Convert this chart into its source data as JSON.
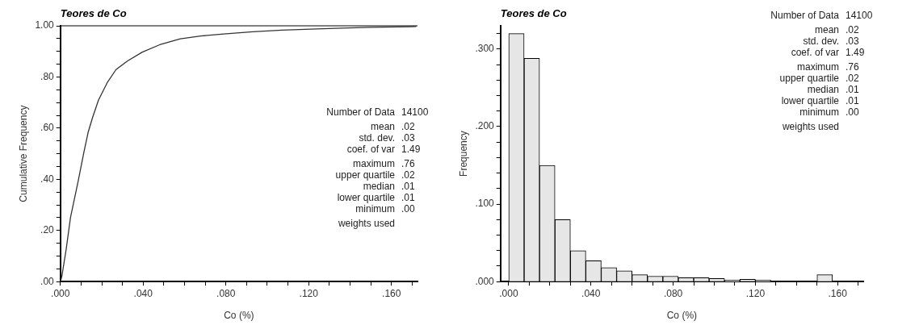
{
  "chart_data": [
    {
      "type": "line",
      "title": "Teores de Co",
      "xlabel": "Co (%)",
      "ylabel": "Cumulative Frequency",
      "color": "#333333",
      "x": [
        0,
        0.0007,
        0.0028,
        0.0049,
        0.0085,
        0.0113,
        0.0134,
        0.0155,
        0.0184,
        0.0226,
        0.0269,
        0.0325,
        0.0396,
        0.048,
        0.058,
        0.0678,
        0.079,
        0.093,
        0.107,
        0.121,
        0.136,
        0.15,
        0.172
      ],
      "values": [
        0,
        0.02,
        0.126,
        0.251,
        0.389,
        0.503,
        0.583,
        0.64,
        0.709,
        0.777,
        0.829,
        0.863,
        0.897,
        0.926,
        0.949,
        0.96,
        0.968,
        0.977,
        0.983,
        0.987,
        0.991,
        0.994,
        0.997
      ],
      "xlim": [
        0,
        0.1726
      ],
      "xticks": [
        {
          "value": 0,
          "label": ".000"
        },
        {
          "value": 0.01,
          "label": null
        },
        {
          "value": 0.02,
          "label": null
        },
        {
          "value": 0.03,
          "label": null
        },
        {
          "value": 0.04,
          "label": ".040"
        },
        {
          "value": 0.05,
          "label": null
        },
        {
          "value": 0.06,
          "label": null
        },
        {
          "value": 0.07,
          "label": null
        },
        {
          "value": 0.08,
          "label": ".080"
        },
        {
          "value": 0.09,
          "label": null
        },
        {
          "value": 0.1,
          "label": null
        },
        {
          "value": 0.11,
          "label": null
        },
        {
          "value": 0.12,
          "label": ".120"
        },
        {
          "value": 0.13,
          "label": null
        },
        {
          "value": 0.14,
          "label": null
        },
        {
          "value": 0.15,
          "label": null
        },
        {
          "value": 0.16,
          "label": ".160"
        },
        {
          "value": 0.17,
          "label": null
        }
      ],
      "ylim": [
        0,
        1
      ],
      "yticks": [
        {
          "value": 0,
          "label": ".00"
        },
        {
          "value": 0.05,
          "label": null
        },
        {
          "value": 0.1,
          "label": null
        },
        {
          "value": 0.15,
          "label": null
        },
        {
          "value": 0.2,
          "label": ".20"
        },
        {
          "value": 0.25,
          "label": null
        },
        {
          "value": 0.3,
          "label": null
        },
        {
          "value": 0.35,
          "label": null
        },
        {
          "value": 0.4,
          "label": ".40"
        },
        {
          "value": 0.45,
          "label": null
        },
        {
          "value": 0.5,
          "label": null
        },
        {
          "value": 0.55,
          "label": null
        },
        {
          "value": 0.6,
          "label": ".60"
        },
        {
          "value": 0.65,
          "label": null
        },
        {
          "value": 0.7,
          "label": null
        },
        {
          "value": 0.75,
          "label": null
        },
        {
          "value": 0.8,
          "label": ".80"
        },
        {
          "value": 0.85,
          "label": null
        },
        {
          "value": 0.9,
          "label": null
        },
        {
          "value": 0.95,
          "label": null
        },
        {
          "value": 1,
          "label": "1.00"
        }
      ],
      "ref_lines": [
        {
          "axis": "y",
          "value": 1,
          "color": "#000000"
        }
      ],
      "grid": false,
      "legend": false,
      "annotations": [
        "Number of Data",
        "14100",
        "mean",
        ".02",
        "std. dev.",
        ".03",
        "coef. of var",
        "1.49",
        "maximum",
        ".76",
        "upper quartile",
        ".02",
        "median",
        ".01",
        "lower quartile",
        ".01",
        "minimum",
        ".00",
        "weights used"
      ]
    },
    {
      "type": "histogram",
      "title": "Teores de Co",
      "xlabel": "Co (%)",
      "ylabel": "Frequency",
      "color": "#e6e6e6",
      "bins": [
        0,
        0.0075,
        0.015,
        0.0225,
        0.03,
        0.0375,
        0.045,
        0.0525,
        0.06,
        0.0675,
        0.075,
        0.0825,
        0.09,
        0.0975,
        0.105,
        0.1125,
        0.12,
        0.1275,
        0.135,
        0.1425,
        0.15,
        0.1575,
        0.165,
        0.1725
      ],
      "values": [
        0.32,
        0.288,
        0.15,
        0.08,
        0.04,
        0.027,
        0.018,
        0.014,
        0.009,
        0.007,
        0.007,
        0.005,
        0.005,
        0.004,
        0.002,
        0.003,
        0.002,
        null,
        null,
        null,
        0.009,
        null,
        null
      ],
      "xlim": [
        -0.004,
        0.1725
      ],
      "xticks": [
        {
          "value": 0,
          "label": ".000"
        },
        {
          "value": 0.01,
          "label": null
        },
        {
          "value": 0.02,
          "label": null
        },
        {
          "value": 0.03,
          "label": null
        },
        {
          "value": 0.04,
          "label": ".040"
        },
        {
          "value": 0.05,
          "label": null
        },
        {
          "value": 0.06,
          "label": null
        },
        {
          "value": 0.07,
          "label": null
        },
        {
          "value": 0.08,
          "label": ".080"
        },
        {
          "value": 0.09,
          "label": null
        },
        {
          "value": 0.1,
          "label": null
        },
        {
          "value": 0.11,
          "label": null
        },
        {
          "value": 0.12,
          "label": ".120"
        },
        {
          "value": 0.13,
          "label": null
        },
        {
          "value": 0.14,
          "label": null
        },
        {
          "value": 0.15,
          "label": null
        },
        {
          "value": 0.16,
          "label": ".160"
        },
        {
          "value": 0.17,
          "label": null
        }
      ],
      "ylim": [
        0,
        0.33
      ],
      "yticks": [
        {
          "value": 0,
          "label": ".000"
        },
        {
          "value": 0.02,
          "label": null
        },
        {
          "value": 0.04,
          "label": null
        },
        {
          "value": 0.06,
          "label": null
        },
        {
          "value": 0.08,
          "label": null
        },
        {
          "value": 0.1,
          "label": ".100"
        },
        {
          "value": 0.12,
          "label": null
        },
        {
          "value": 0.14,
          "label": null
        },
        {
          "value": 0.16,
          "label": null
        },
        {
          "value": 0.18,
          "label": null
        },
        {
          "value": 0.2,
          "label": ".200"
        },
        {
          "value": 0.22,
          "label": null
        },
        {
          "value": 0.24,
          "label": null
        },
        {
          "value": 0.26,
          "label": null
        },
        {
          "value": 0.28,
          "label": null
        },
        {
          "value": 0.3,
          "label": ".300"
        },
        {
          "value": 0.32,
          "label": null
        }
      ],
      "grid": false,
      "legend": false,
      "annotations": [
        "Number of Data",
        "14100",
        "mean",
        ".02",
        "std. dev.",
        ".03",
        "coef. of var",
        "1.49",
        "maximum",
        ".76",
        "upper quartile",
        ".02",
        "median",
        ".01",
        "lower quartile",
        ".01",
        "minimum",
        ".00",
        "weights used"
      ]
    }
  ]
}
